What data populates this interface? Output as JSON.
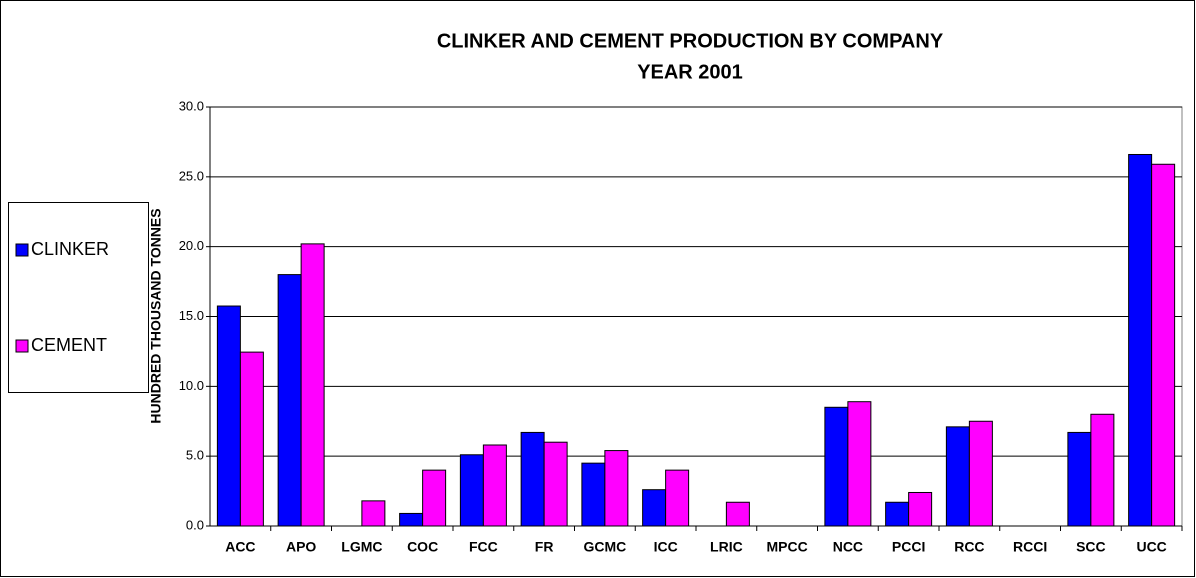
{
  "chart_data": {
    "type": "bar",
    "title": "CLINKER AND CEMENT PRODUCTION BY COMPANY",
    "subtitle": "YEAR 2001",
    "y_label": "HUNDRED THOUSAND TONNES",
    "categories": [
      "ACC",
      "APO",
      "LGMC",
      "COC",
      "FCC",
      "FR",
      "GCMC",
      "ICC",
      "LRIC",
      "MPCC",
      "NCC",
      "PCCI",
      "RCC",
      "RCCI",
      "SCC",
      "UCC"
    ],
    "series": [
      {
        "name": "CLINKER",
        "color": "#0000ff",
        "values": [
          15.75,
          18.0,
          0,
          0.9,
          5.1,
          6.7,
          4.5,
          2.6,
          0,
          0,
          8.5,
          1.7,
          7.1,
          0,
          6.7,
          26.6
        ]
      },
      {
        "name": "CEMENT",
        "color": "#ff00ff",
        "values": [
          12.45,
          20.2,
          1.8,
          4.0,
          5.8,
          6.0,
          5.4,
          4.0,
          1.7,
          0,
          8.9,
          2.4,
          7.5,
          0,
          8.0,
          25.9
        ]
      }
    ],
    "ylim": [
      0,
      30
    ],
    "yticks": [
      {
        "value": 0,
        "label": "0.0"
      },
      {
        "value": 5,
        "label": "5.0"
      },
      {
        "value": 10,
        "label": "10.0"
      },
      {
        "value": 15,
        "label": "15.0"
      },
      {
        "value": 20,
        "label": "20.0"
      },
      {
        "value": 25,
        "label": "25.0"
      },
      {
        "value": 30,
        "label": "30.0"
      }
    ],
    "grid": true,
    "legend": "left"
  }
}
